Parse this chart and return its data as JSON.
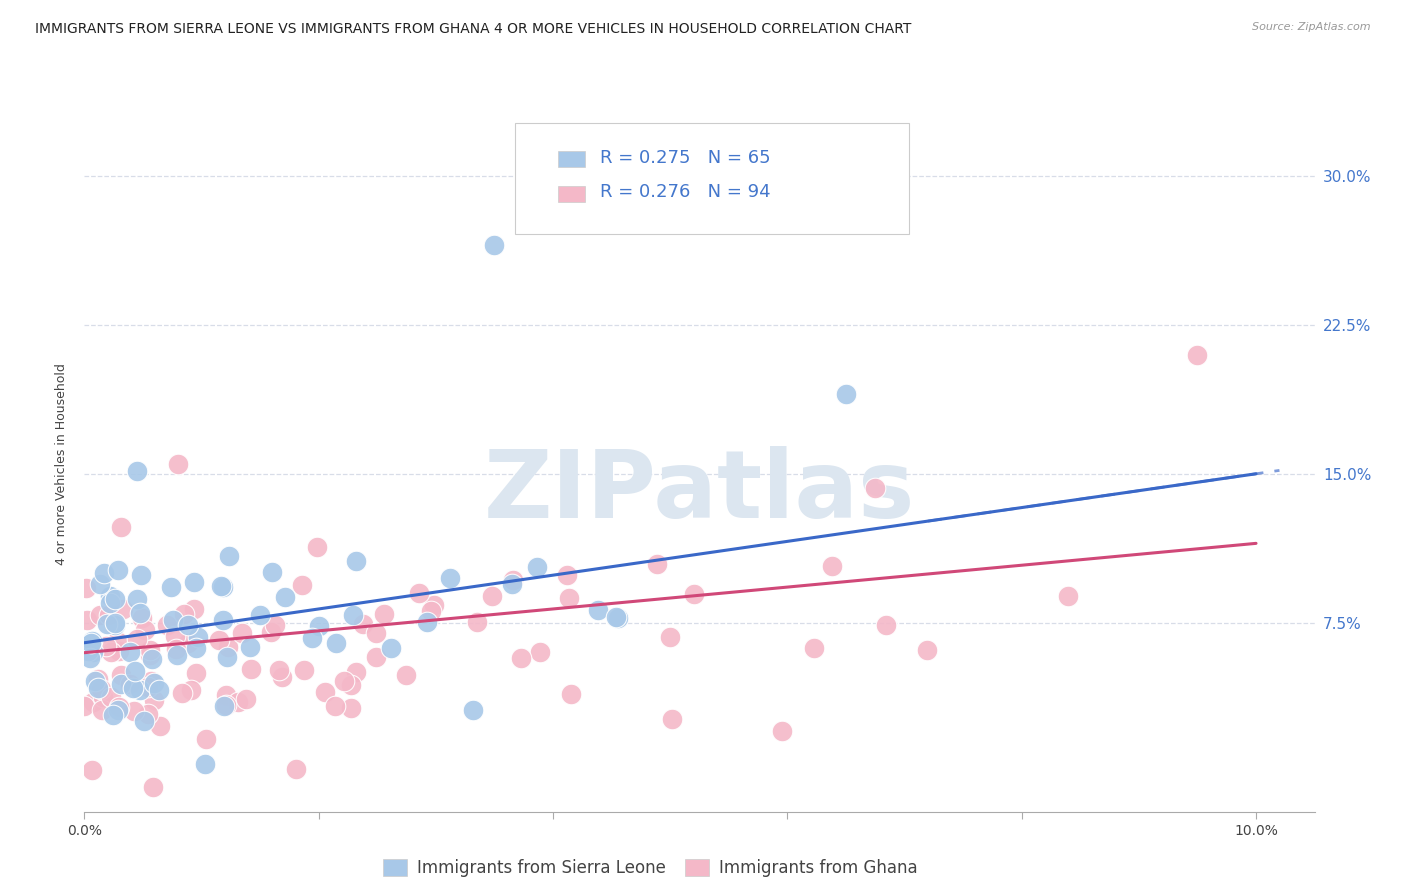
{
  "title": "IMMIGRANTS FROM SIERRA LEONE VS IMMIGRANTS FROM GHANA 4 OR MORE VEHICLES IN HOUSEHOLD CORRELATION CHART",
  "source": "Source: ZipAtlas.com",
  "ylabel": "4 or more Vehicles in Household",
  "xlim": [
    0.0,
    0.105
  ],
  "ylim": [
    -0.02,
    0.33
  ],
  "yticks": [
    0.075,
    0.15,
    0.225,
    0.3
  ],
  "yticklabels": [
    "7.5%",
    "15.0%",
    "22.5%",
    "30.0%"
  ],
  "sierra_leone_color": "#a8c8e8",
  "ghana_color": "#f4b8c8",
  "sierra_leone_line_color": "#3a68c8",
  "ghana_line_color": "#d04878",
  "sierra_leone_R": 0.275,
  "sierra_leone_N": 65,
  "ghana_R": 0.276,
  "ghana_N": 94,
  "background_color": "#ffffff",
  "grid_color": "#d8dde8",
  "watermark_color": "#dce6f0",
  "title_fontsize": 10,
  "axis_label_fontsize": 9,
  "tick_fontsize": 10,
  "legend_fontsize": 13,
  "right_tick_color": "#4477cc"
}
